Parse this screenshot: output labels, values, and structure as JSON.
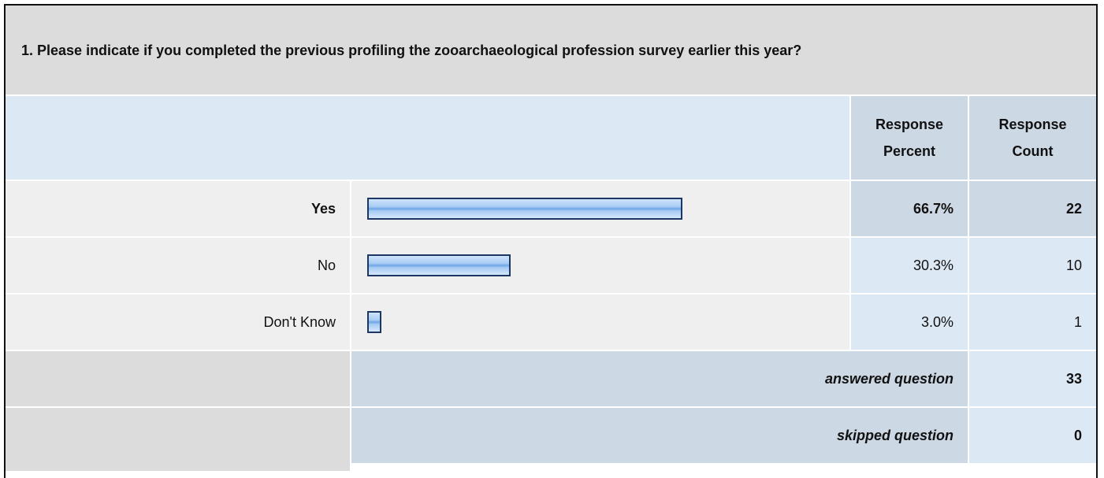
{
  "question": "1. Please indicate if you completed the previous profiling the zooarchaeological profession survey earlier this year?",
  "headers": [
    "Response Percent",
    "Response Count"
  ],
  "rows": [
    {
      "label": "Yes",
      "percent": 66.7,
      "percent_label": "66.7%",
      "count": 22
    },
    {
      "label": "No",
      "percent": 30.3,
      "percent_label": "30.3%",
      "count": 10
    },
    {
      "label": "Don't Know",
      "percent": 3.0,
      "percent_label": "3.0%",
      "count": 1
    }
  ],
  "answered": {
    "label": "answered question",
    "count": 33
  },
  "skipped": {
    "label": "skipped question",
    "count": 0
  }
}
